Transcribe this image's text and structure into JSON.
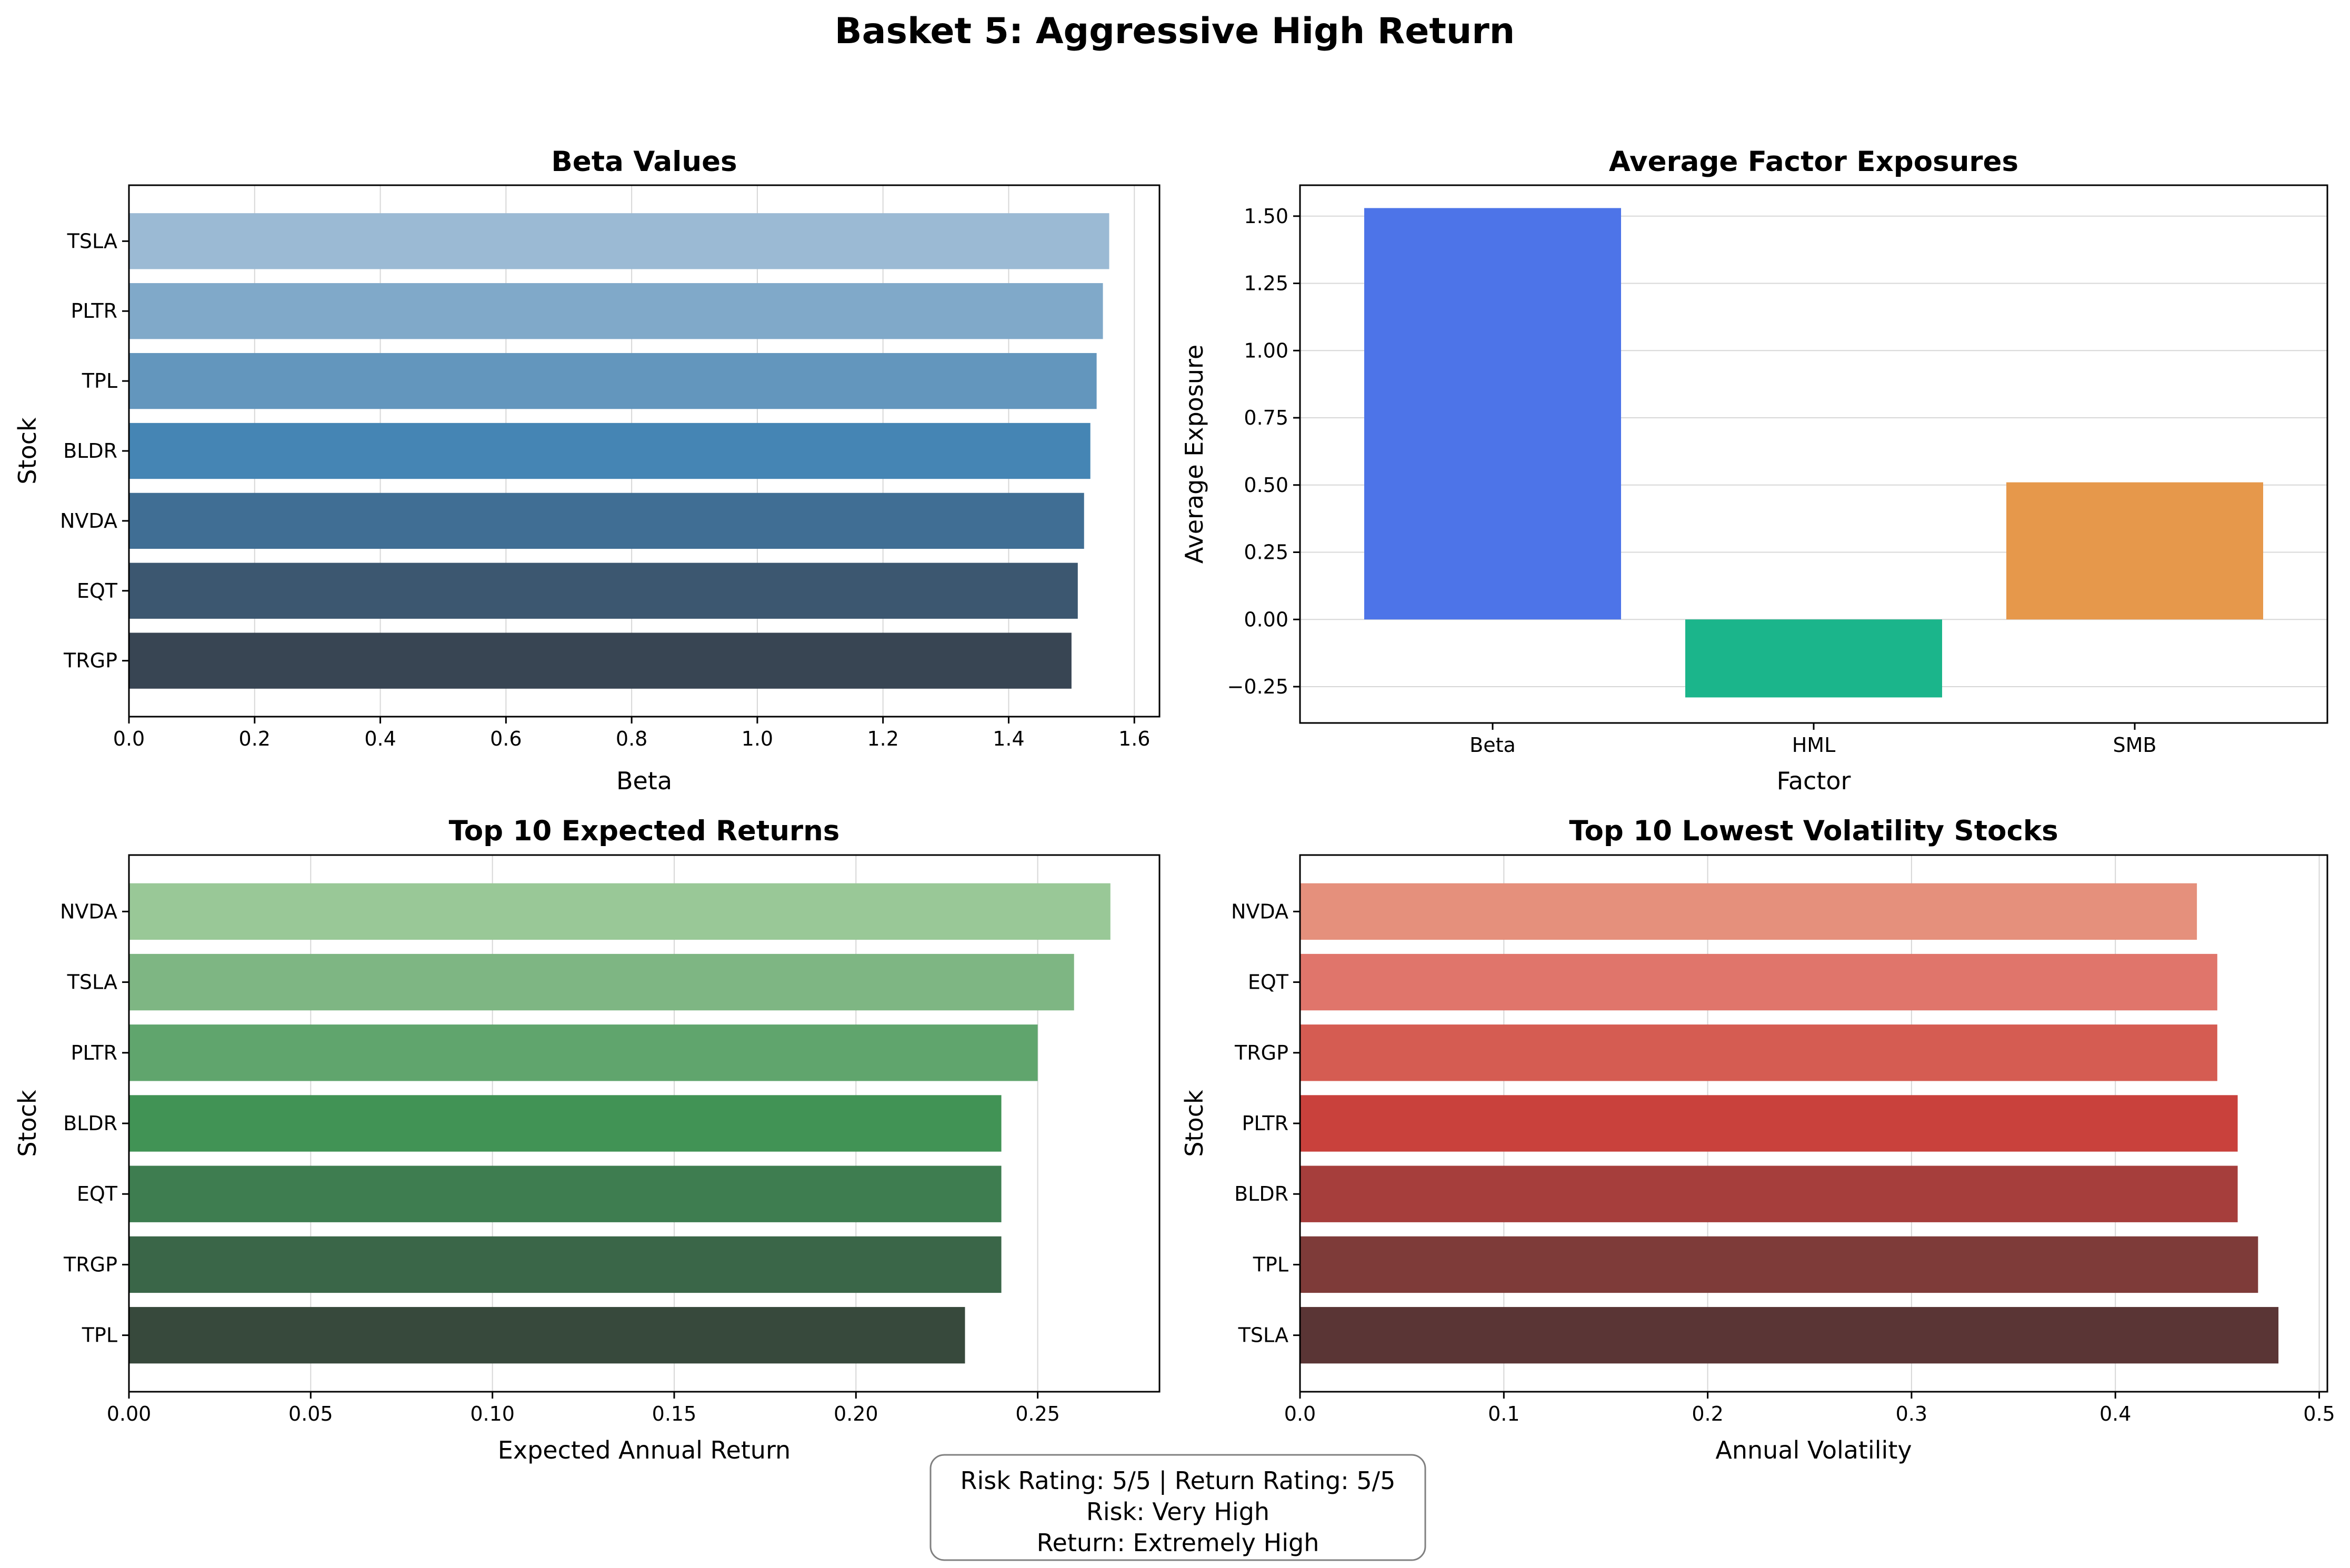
{
  "figure": {
    "title": "Basket 5: Aggressive High Return"
  },
  "chart_data": [
    {
      "type": "bar",
      "orientation": "horizontal",
      "title": "Beta Values",
      "xlabel": "Beta",
      "ylabel": "Stock",
      "categories": [
        "TSLA",
        "PLTR",
        "TPL",
        "BLDR",
        "NVDA",
        "EQT",
        "TRGP"
      ],
      "values": [
        1.56,
        1.55,
        1.54,
        1.53,
        1.52,
        1.51,
        1.5
      ],
      "xlim": [
        0,
        1.64
      ],
      "xticks": [
        "0.0",
        "0.2",
        "0.4",
        "0.6",
        "0.8",
        "1.0",
        "1.2",
        "1.4",
        "1.6"
      ],
      "colors": [
        "#9bbad4",
        "#80a9c9",
        "#6396bd",
        "#4585b4",
        "#406e94",
        "#3c5770",
        "#384553"
      ],
      "grid": "x"
    },
    {
      "type": "bar",
      "orientation": "vertical",
      "title": "Average Factor Exposures",
      "xlabel": "Factor",
      "ylabel": "Average Exposure",
      "categories": [
        "Beta",
        "HML",
        "SMB"
      ],
      "values": [
        1.53,
        -0.29,
        0.51
      ],
      "ylim": [
        -0.385,
        1.615
      ],
      "yticks": [
        "−0.25",
        "0.00",
        "0.25",
        "0.50",
        "0.75",
        "1.00",
        "1.25",
        "1.50"
      ],
      "colors": [
        "#4d74e8",
        "#1bb58b",
        "#e6984b"
      ],
      "grid": "y"
    },
    {
      "type": "bar",
      "orientation": "horizontal",
      "title": "Top 10 Expected Returns",
      "xlabel": "Expected Annual Return",
      "ylabel": "Stock",
      "categories": [
        "NVDA",
        "TSLA",
        "PLTR",
        "BLDR",
        "EQT",
        "TRGP",
        "TPL"
      ],
      "values": [
        0.27,
        0.26,
        0.25,
        0.24,
        0.24,
        0.24,
        0.23
      ],
      "xlim": [
        0,
        0.2835
      ],
      "xticks": [
        "0.00",
        "0.05",
        "0.10",
        "0.15",
        "0.20",
        "0.25"
      ],
      "colors": [
        "#99c897",
        "#7eb683",
        "#60a56d",
        "#419355",
        "#3e7d50",
        "#3a6648",
        "#37493c"
      ],
      "grid": "x"
    },
    {
      "type": "bar",
      "orientation": "horizontal",
      "title": "Top 10 Lowest Volatility Stocks",
      "xlabel": "Annual Volatility",
      "ylabel": "Stock",
      "categories": [
        "NVDA",
        "EQT",
        "TRGP",
        "PLTR",
        "BLDR",
        "TPL",
        "TSLA"
      ],
      "values": [
        0.44,
        0.45,
        0.45,
        0.46,
        0.46,
        0.47,
        0.48
      ],
      "xlim": [
        0,
        0.504
      ],
      "xticks": [
        "0.0",
        "0.1",
        "0.2",
        "0.3",
        "0.4",
        "0.5"
      ],
      "colors": [
        "#e5907c",
        "#e0756b",
        "#d55c52",
        "#c9413c",
        "#a63e3c",
        "#7e3b39",
        "#5a3535"
      ],
      "grid": "x"
    }
  ],
  "info_box": {
    "line1": "Risk Rating: 5/5 | Return Rating: 5/5",
    "line2": "Risk: Very High",
    "line3": "Return: Extremely High"
  }
}
